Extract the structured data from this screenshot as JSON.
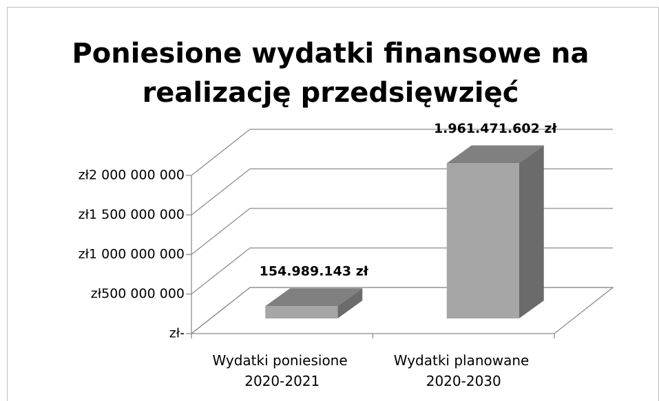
{
  "chart_data": {
    "type": "bar3d",
    "title": [
      "Poniesione wydatki finansowe na",
      "realizację przedsięwzięć"
    ],
    "categories": [
      "Wydatki poniesione 2020-2021",
      "Wydatki planowane 2020-2030"
    ],
    "values": [
      154989143,
      1961471602
    ],
    "value_labels": [
      "154.989.143 zł",
      "1.961.471.602 zł"
    ],
    "color": "#a6a6a6",
    "ylim": [
      0,
      2000000000
    ],
    "yticks": [
      {
        "value": 0,
        "label": "zł-"
      },
      {
        "value": 500000000,
        "label": "zł500 000 000"
      },
      {
        "value": 1000000000,
        "label": "zł1 000 000 000"
      },
      {
        "value": 1500000000,
        "label": "zł1 500 000 000"
      },
      {
        "value": 2000000000,
        "label": "zł2 000 000 000"
      }
    ],
    "grid": true
  }
}
